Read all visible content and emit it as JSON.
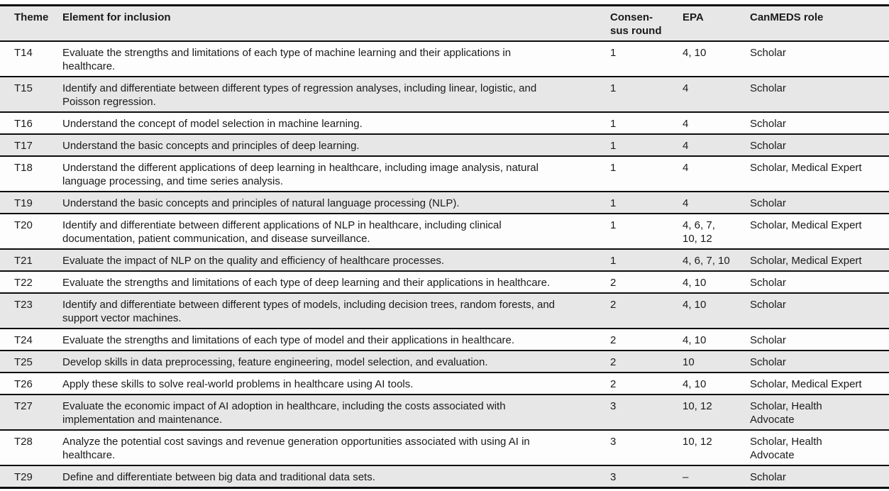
{
  "document": {
    "kind": "academic-paper-table",
    "colors": {
      "header_background": "#e7e7e7",
      "stripe_row_background": "#e7e7e7",
      "plain_row_background": "#fdfdfd",
      "rule_color": "#0d0d0d",
      "text_color": "#1b1b1b"
    }
  },
  "table": {
    "headers": {
      "theme": "Theme",
      "element": "Element for inclusion",
      "consensus": "Consen-\nsus round",
      "epa": "EPA",
      "canmeds": "CanMEDS role"
    },
    "rows": [
      {
        "theme": "T14",
        "element": "Evaluate the strengths and limitations of each type of machine learning and their applications in\nhealthcare.",
        "consensus": "1",
        "epa": "4, 10",
        "canmeds": "Scholar"
      },
      {
        "theme": "T15",
        "element": "Identify and differentiate between different types of regression analyses, including linear, logistic, and\nPoisson regression.",
        "consensus": "1",
        "epa": "4",
        "canmeds": "Scholar"
      },
      {
        "theme": "T16",
        "element": "Understand the concept of model selection in machine learning.",
        "consensus": "1",
        "epa": "4",
        "canmeds": "Scholar"
      },
      {
        "theme": "T17",
        "element": "Understand the basic concepts and principles of deep learning.",
        "consensus": "1",
        "epa": "4",
        "canmeds": "Scholar"
      },
      {
        "theme": "T18",
        "element": "Understand the different applications of deep learning in healthcare, including image analysis, natural\nlanguage processing, and time series analysis.",
        "consensus": "1",
        "epa": "4",
        "canmeds": "Scholar, Medical Expert"
      },
      {
        "theme": "T19",
        "element": "Understand the basic concepts and principles of natural language processing (NLP).",
        "consensus": "1",
        "epa": "4",
        "canmeds": "Scholar"
      },
      {
        "theme": "T20",
        "element": "Identify and differentiate between different applications of NLP in healthcare, including clinical\ndocumentation, patient communication, and disease surveillance.",
        "consensus": "1",
        "epa": "4, 6, 7,\n10, 12",
        "canmeds": "Scholar, Medical Expert"
      },
      {
        "theme": "T21",
        "element": "Evaluate the impact of NLP on the quality and efficiency of healthcare processes.",
        "consensus": "1",
        "epa": "4, 6, 7, 10",
        "canmeds": "Scholar, Medical Expert"
      },
      {
        "theme": "T22",
        "element": "Evaluate the strengths and limitations of each type of deep learning and their applications in healthcare.",
        "consensus": "2",
        "epa": "4, 10",
        "canmeds": "Scholar"
      },
      {
        "theme": "T23",
        "element": "Identify and differentiate between different types of models, including decision trees, random forests, and\nsupport vector machines.",
        "consensus": "2",
        "epa": "4, 10",
        "canmeds": "Scholar"
      },
      {
        "theme": "T24",
        "element": "Evaluate the strengths and limitations of each type of model and their applications in healthcare.",
        "consensus": "2",
        "epa": "4, 10",
        "canmeds": "Scholar"
      },
      {
        "theme": "T25",
        "element": "Develop skills in data preprocessing, feature engineering, model selection, and evaluation.",
        "consensus": "2",
        "epa": "10",
        "canmeds": "Scholar"
      },
      {
        "theme": "T26",
        "element": "Apply these skills to solve real-world problems in healthcare using AI tools.",
        "consensus": "2",
        "epa": "4, 10",
        "canmeds": "Scholar, Medical Expert"
      },
      {
        "theme": "T27",
        "element": "Evaluate the economic impact of AI adoption in healthcare, including the costs associated with\nimplementation and maintenance.",
        "consensus": "3",
        "epa": "10, 12",
        "canmeds": "Scholar, Health\nAdvocate"
      },
      {
        "theme": "T28",
        "element": "Analyze the potential cost savings and revenue generation opportunities associated with using AI in\nhealthcare.",
        "consensus": "3",
        "epa": "10, 12",
        "canmeds": "Scholar, Health\nAdvocate"
      },
      {
        "theme": "T29",
        "element": "Define and differentiate between big data and traditional data sets.",
        "consensus": "3",
        "epa": "–",
        "canmeds": "Scholar"
      }
    ]
  }
}
